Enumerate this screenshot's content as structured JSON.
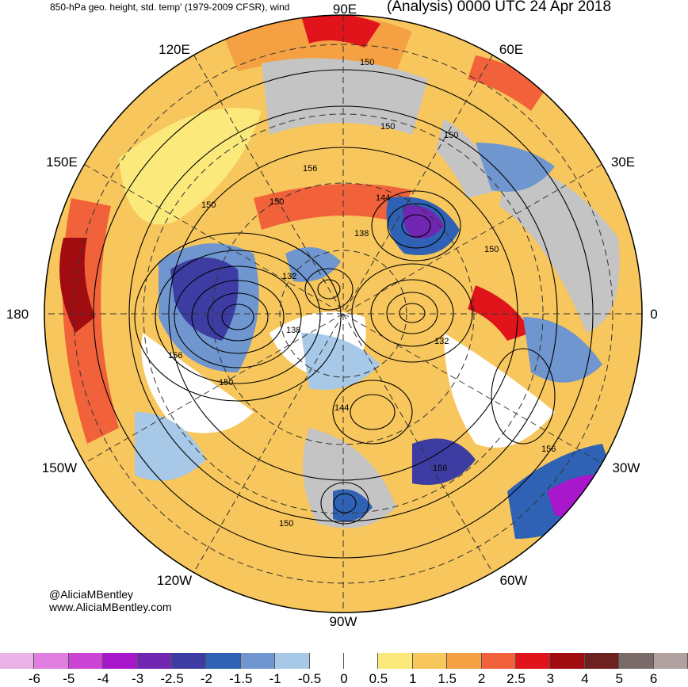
{
  "header": {
    "left_title": "850-hPa geo. height, std. temp' (1979-2009 CFSR), wind",
    "right_title": "(Analysis) 0000 UTC 24 Apr 2018"
  },
  "credits": {
    "handle": "@AliciaMBentley",
    "site": "www.AliciaMBentley.com"
  },
  "longitude_labels": [
    "90E",
    "60E",
    "30E",
    "0",
    "30W",
    "60W",
    "90W",
    "120W",
    "150W",
    "180",
    "150E",
    "120E"
  ],
  "contour_labels": [
    "150",
    "150",
    "150",
    "156",
    "150",
    "150",
    "144",
    "138",
    "132",
    "138",
    "132",
    "156",
    "150",
    "144",
    "156",
    "156",
    "150",
    "150"
  ],
  "colorbar": {
    "ticks": [
      "-6",
      "-5",
      "-4",
      "-3",
      "-2.5",
      "-2",
      "-1.5",
      "-1",
      "-0.5",
      "0",
      "0.5",
      "1",
      "1.5",
      "2",
      "2.5",
      "3",
      "4",
      "5",
      "6"
    ],
    "colors": [
      "#e9b3e8",
      "#e17fe0",
      "#cc44d6",
      "#a817cc",
      "#7026b0",
      "#3d3ca3",
      "#2f62b4",
      "#6f96cf",
      "#a7c8e6",
      "#ffffff",
      "#ffffff",
      "#fbe97c",
      "#f7c65c",
      "#f4a043",
      "#f1623a",
      "#e0141a",
      "#a10c10",
      "#6e2121",
      "#7a6a6a",
      "#b0a0a0"
    ]
  }
}
